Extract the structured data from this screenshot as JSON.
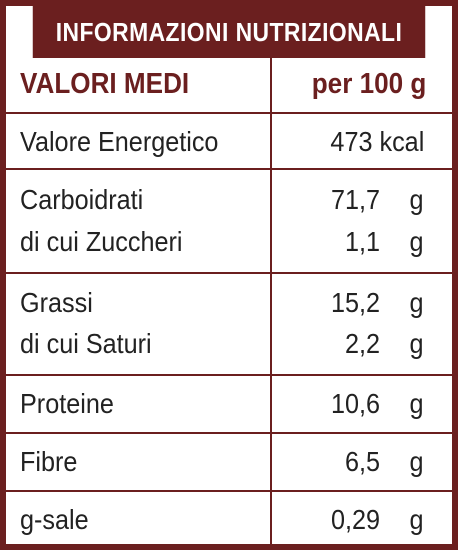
{
  "title": "INFORMAZIONI NUTRIZIONALI",
  "header": {
    "left": "VALORI MEDI",
    "right": "per 100 g"
  },
  "energy": {
    "label": "Valore Energetico",
    "value": "473 kcal"
  },
  "carbs": {
    "label": "Carboidrati",
    "value": "71,7",
    "unit": "g",
    "sub_label": "di cui Zuccheri",
    "sub_value": "1,1",
    "sub_unit": "g"
  },
  "fats": {
    "label": "Grassi",
    "value": "15,2",
    "unit": "g",
    "sub_label": "di cui Saturi",
    "sub_value": "2,2",
    "sub_unit": "g"
  },
  "protein": {
    "label": "Proteine",
    "value": "10,6",
    "unit": "g"
  },
  "fibre": {
    "label": "Fibre",
    "value": "6,5",
    "unit": "g"
  },
  "salt": {
    "label": "g-sale",
    "value": "0,29",
    "unit": "g"
  },
  "colors": {
    "brand": "#6b1f1f",
    "text": "#222222",
    "background": "#ffffff"
  }
}
